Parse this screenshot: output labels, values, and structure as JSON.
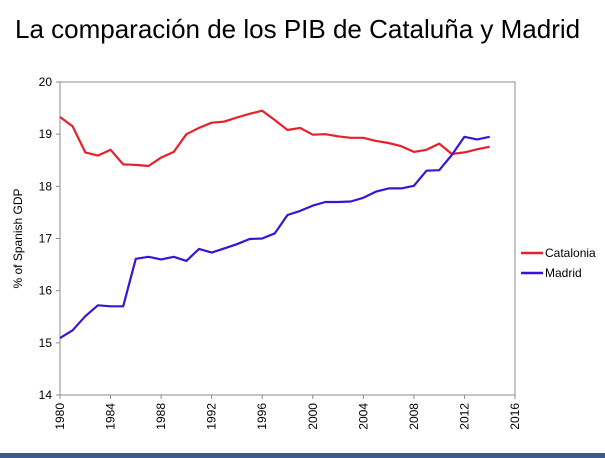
{
  "slide": {
    "title": "La comparación de los PIB de Cataluña y Madrid"
  },
  "chart_data": {
    "type": "line",
    "title": "",
    "xlabel": "",
    "ylabel": "% of Spanish GDP",
    "xlim": [
      1980,
      2016
    ],
    "ylim": [
      14,
      20
    ],
    "x_ticks": [
      1980,
      1984,
      1988,
      1992,
      1996,
      2000,
      2004,
      2008,
      2012,
      2016
    ],
    "y_ticks": [
      14,
      15,
      16,
      17,
      18,
      19,
      20
    ],
    "grid": false,
    "legend": "right",
    "x": [
      1980,
      1981,
      1982,
      1983,
      1984,
      1985,
      1986,
      1987,
      1988,
      1989,
      1990,
      1991,
      1992,
      1993,
      1994,
      1995,
      1996,
      1997,
      1998,
      1999,
      2000,
      2001,
      2002,
      2003,
      2004,
      2005,
      2006,
      2007,
      2008,
      2009,
      2010,
      2011,
      2012,
      2013,
      2014
    ],
    "series": [
      {
        "name": "Catalonia",
        "color": "#e8202a",
        "values": [
          19.33,
          19.15,
          18.65,
          18.59,
          18.7,
          18.42,
          18.41,
          18.39,
          18.55,
          18.66,
          19.0,
          19.12,
          19.22,
          19.24,
          19.32,
          19.39,
          19.45,
          19.27,
          19.08,
          19.12,
          18.99,
          19.0,
          18.96,
          18.93,
          18.93,
          18.87,
          18.83,
          18.77,
          18.66,
          18.7,
          18.82,
          18.62,
          18.65,
          18.71,
          18.76
        ]
      },
      {
        "name": "Madrid",
        "color": "#3b13d6",
        "values": [
          15.09,
          15.24,
          15.51,
          15.72,
          15.7,
          15.7,
          16.61,
          16.65,
          16.6,
          16.65,
          16.57,
          16.8,
          16.73,
          16.81,
          16.89,
          16.99,
          17.0,
          17.1,
          17.45,
          17.53,
          17.63,
          17.7,
          17.7,
          17.71,
          17.78,
          17.9,
          17.96,
          17.96,
          18.01,
          18.3,
          18.31,
          18.6,
          18.95,
          18.9,
          18.95
        ]
      }
    ]
  }
}
